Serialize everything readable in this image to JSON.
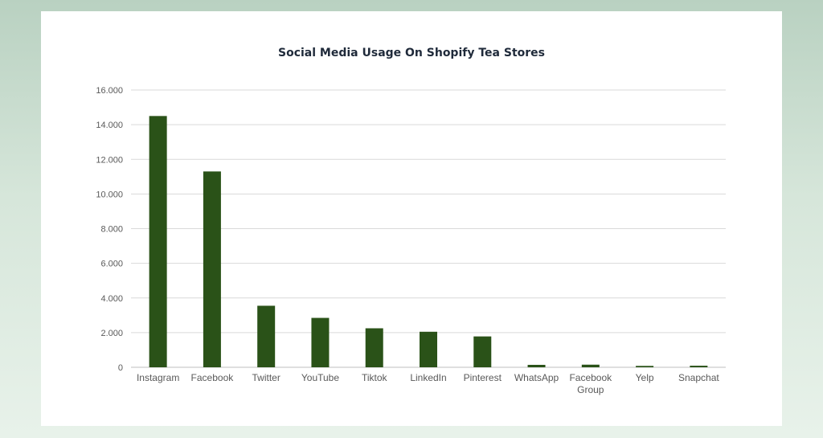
{
  "chart_data": {
    "type": "bar",
    "title": "Social Media Usage On Shopify Tea Stores",
    "xlabel": "",
    "ylabel": "",
    "categories": [
      "Instagram",
      "Facebook",
      "Twitter",
      "YouTube",
      "Tiktok",
      "LinkedIn",
      "Pinterest",
      "WhatsApp",
      "Facebook Group",
      "Yelp",
      "Snapchat"
    ],
    "values": [
      14500,
      11300,
      3550,
      2850,
      2250,
      2050,
      1780,
      140,
      150,
      80,
      90
    ],
    "ylim": [
      0,
      16000
    ],
    "yticks": [
      0,
      2000,
      4000,
      6000,
      8000,
      10000,
      12000,
      14000,
      16000
    ],
    "ytick_labels": [
      "0",
      "2.000",
      "4.000",
      "6.000",
      "8.000",
      "10.000",
      "12.000",
      "14.000",
      "16.000"
    ],
    "grid": true,
    "legend": "none",
    "colors": {
      "bar": "#2a5218",
      "grid": "#d9d9d9",
      "axis": "#bfbfbf",
      "text": "#595959",
      "title": "#1f2a3a"
    }
  }
}
